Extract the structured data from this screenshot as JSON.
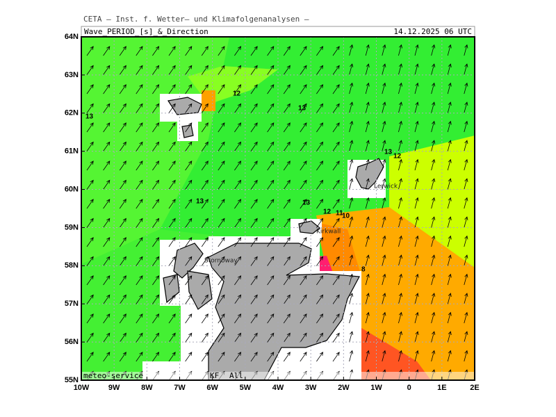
{
  "map": {
    "header": "CETA – Inst. f. Wetter– und Klimafolgenanalysen –",
    "title": "Wave_PERIOD_[s]_&_Direction",
    "date": "14.12.2025 06 UTC",
    "lat_labels": [
      "55N",
      "56N",
      "57N",
      "58N",
      "59N",
      "60N",
      "61N",
      "62N",
      "63N",
      "64N"
    ],
    "lon_labels": [
      "10W",
      "9W",
      "8W",
      "7W",
      "6W",
      "5W",
      "4W",
      "3W",
      "2W",
      "1W",
      "0",
      "1E",
      "2E"
    ],
    "contour_labels": [
      "13",
      "12",
      "13",
      "13",
      "12",
      "13",
      "13",
      "12",
      "11",
      "10",
      "8"
    ],
    "places": [
      "Lerwick",
      "Kirkwall",
      "Stornoway"
    ],
    "footer": [
      "meteo-service",
      "KF",
      "All"
    ]
  }
}
